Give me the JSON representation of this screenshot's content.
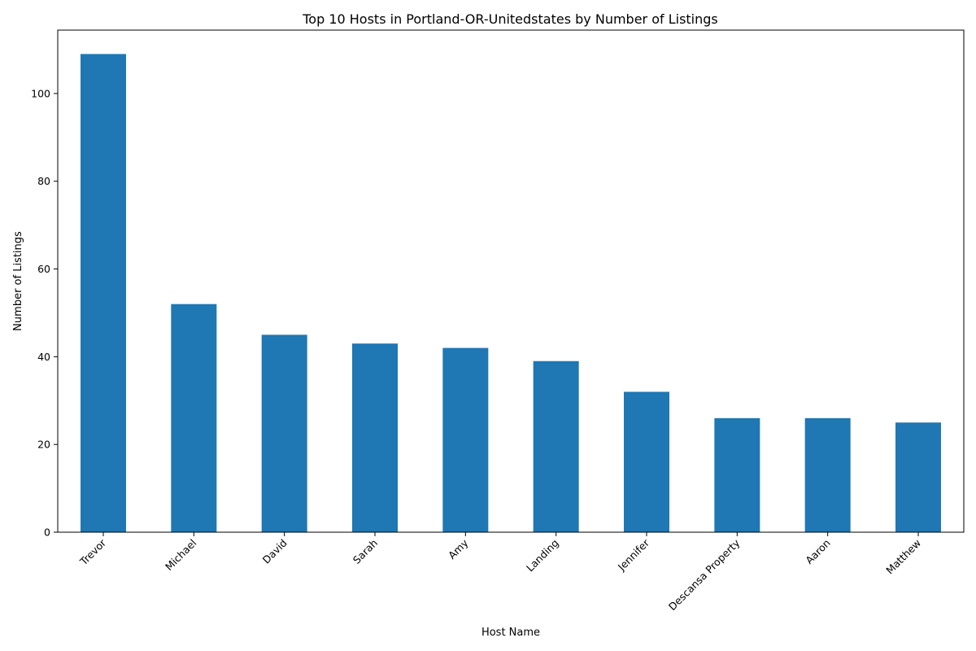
{
  "chart_data": {
    "type": "bar",
    "title": "Top 10 Hosts in Portland-OR-Unitedstates by Number of Listings",
    "xlabel": "Host Name",
    "ylabel": "Number of Listings",
    "categories": [
      "Trevor",
      "Michael",
      "David",
      "Sarah",
      "Amy",
      "Landing",
      "Jennifer",
      "Descansa Property",
      "Aaron",
      "Matthew"
    ],
    "values": [
      109,
      52,
      45,
      43,
      42,
      39,
      32,
      26,
      26,
      25
    ],
    "ylim": [
      0,
      114.45
    ],
    "yticks": [
      0,
      20,
      40,
      60,
      80,
      100
    ],
    "bar_color": "#1f77b4",
    "grid": false,
    "legend": "none"
  }
}
